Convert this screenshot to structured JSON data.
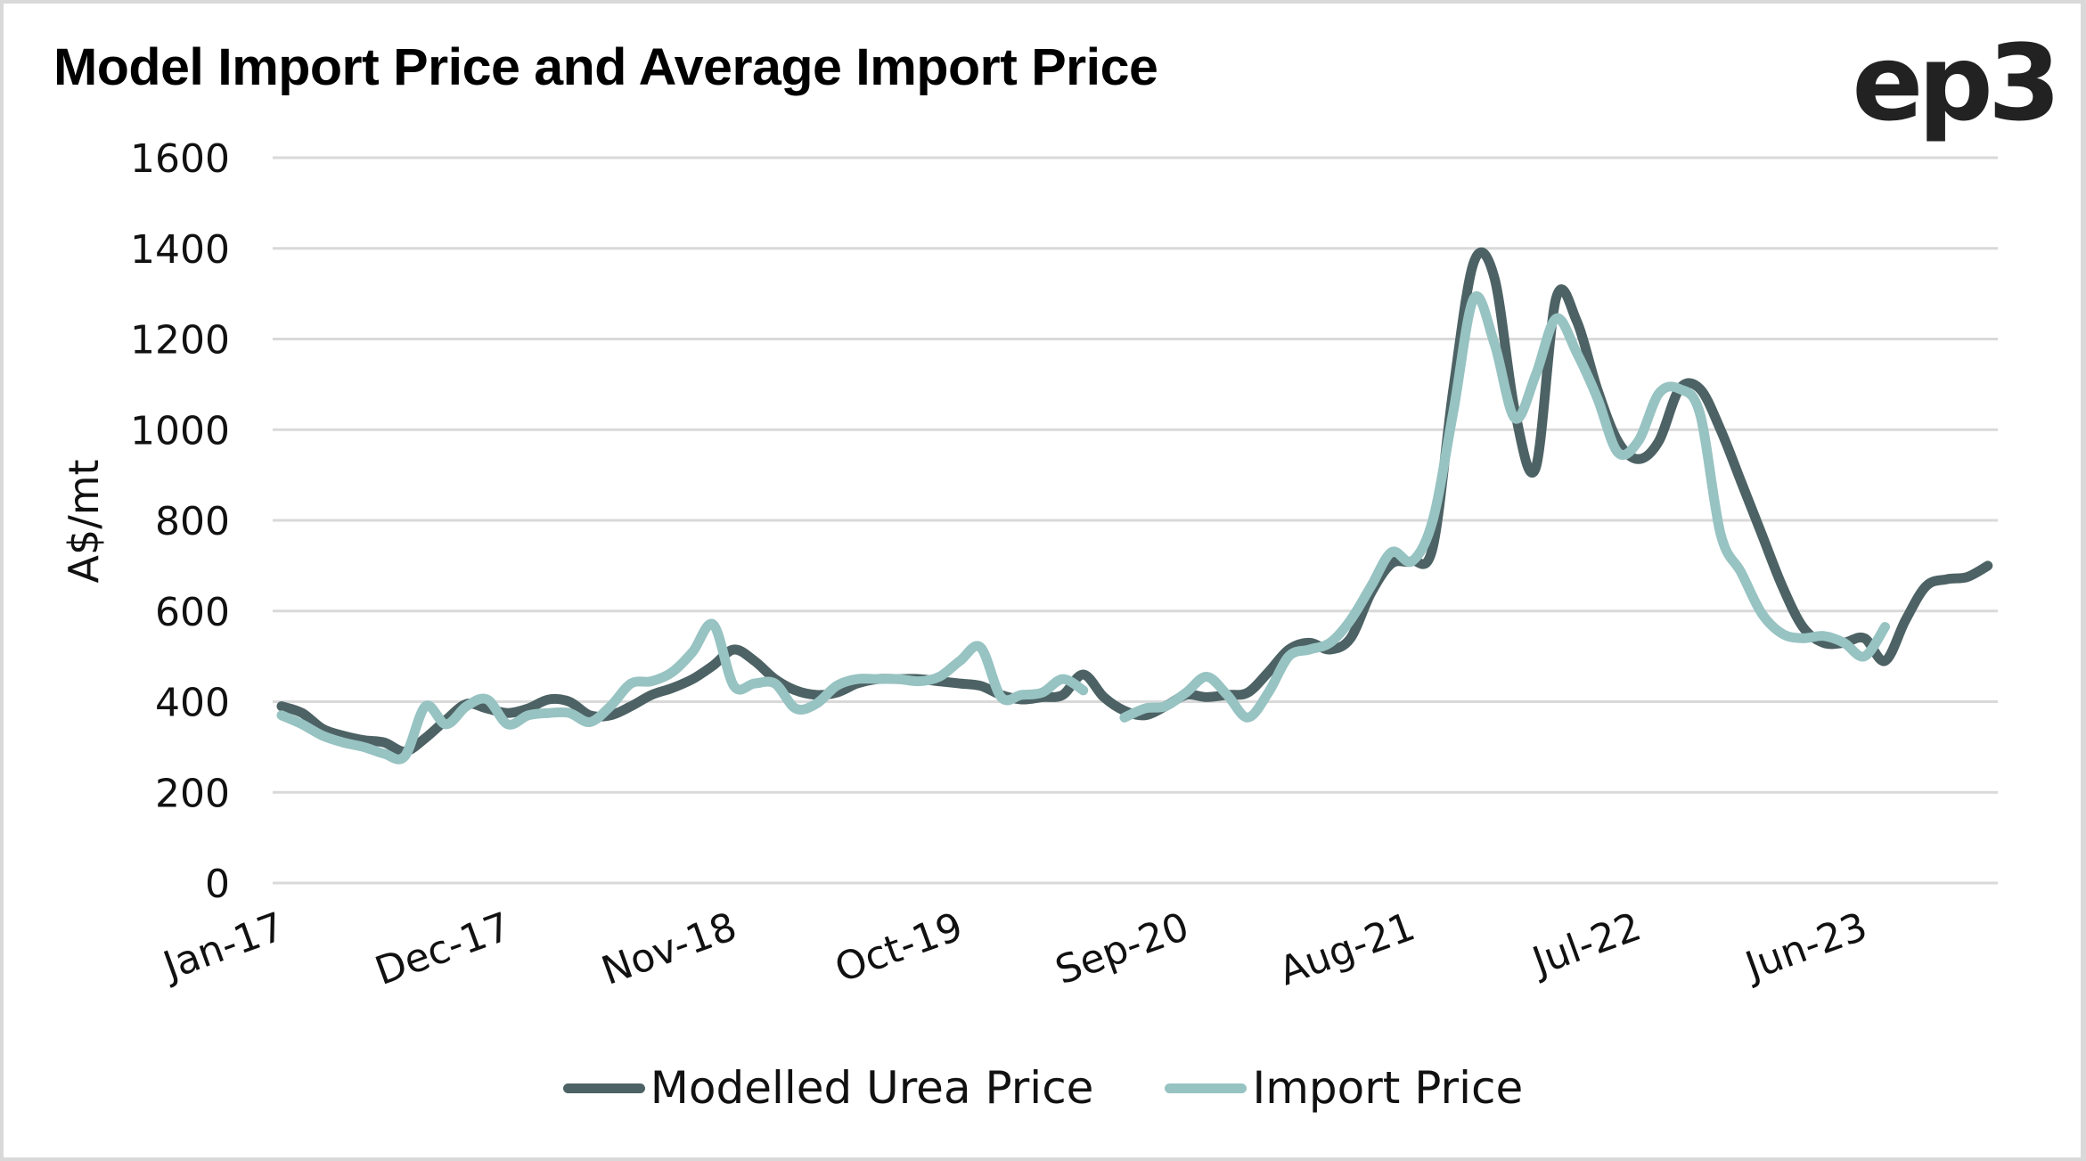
{
  "header": {
    "title": "Model Import Price and Average Import Price",
    "logo": "ep3"
  },
  "colors": {
    "modelled": "#4d6264",
    "import": "#97c3c2",
    "grid": "#d9d9d9",
    "text": "#111111"
  },
  "chart_data": {
    "type": "line",
    "title": "Model Import Price and Average Import Price",
    "xlabel": "",
    "ylabel": "A$/mt",
    "ylim": [
      0,
      1600
    ],
    "yticks": [
      0,
      200,
      400,
      600,
      800,
      1000,
      1200,
      1400,
      1600
    ],
    "grid": true,
    "legend_position": "bottom",
    "x_start": "Jan-17",
    "x_frequency": "monthly",
    "x_count": 84,
    "xtick_labels": [
      {
        "label": "Jan-17",
        "index": 0
      },
      {
        "label": "Dec-17",
        "index": 11
      },
      {
        "label": "Nov-18",
        "index": 22
      },
      {
        "label": "Oct-19",
        "index": 33
      },
      {
        "label": "Sep-20",
        "index": 44
      },
      {
        "label": "Aug-21",
        "index": 55
      },
      {
        "label": "Jul-22",
        "index": 66
      },
      {
        "label": "Jun-23",
        "index": 77
      }
    ],
    "series": [
      {
        "name": "Modelled Urea Price",
        "color": "#4d6264",
        "values": [
          390,
          375,
          340,
          325,
          315,
          310,
          290,
          320,
          360,
          395,
          385,
          375,
          385,
          405,
          400,
          370,
          370,
          390,
          415,
          430,
          450,
          480,
          515,
          490,
          450,
          425,
          415,
          420,
          440,
          450,
          450,
          450,
          445,
          440,
          435,
          415,
          405,
          410,
          415,
          460,
          410,
          380,
          370,
          390,
          415,
          410,
          415,
          420,
          465,
          515,
          530,
          515,
          540,
          640,
          705,
          710,
          740,
          1090,
          1370,
          1335,
          1040,
          915,
          1290,
          1240,
          1090,
          975,
          935,
          975,
          1090,
          1090,
          1000,
          885,
          770,
          655,
          565,
          530,
          530,
          540,
          490,
          580,
          655,
          670,
          675,
          700
        ]
      },
      {
        "name": "Import Price",
        "color": "#97c3c2",
        "values": [
          370,
          350,
          325,
          310,
          300,
          285,
          280,
          390,
          350,
          390,
          405,
          350,
          370,
          375,
          375,
          355,
          390,
          440,
          445,
          465,
          510,
          570,
          435,
          440,
          440,
          385,
          395,
          435,
          450,
          450,
          450,
          445,
          455,
          490,
          520,
          410,
          415,
          420,
          450,
          425,
          null,
          365,
          385,
          390,
          420,
          455,
          415,
          365,
          420,
          500,
          515,
          530,
          580,
          655,
          730,
          710,
          800,
          1040,
          1290,
          1190,
          1025,
          1120,
          1245,
          1170,
          1070,
          950,
          975,
          1080,
          1090,
          1035,
          770,
          685,
          595,
          550,
          540,
          545,
          530,
          500,
          565
        ]
      }
    ]
  }
}
